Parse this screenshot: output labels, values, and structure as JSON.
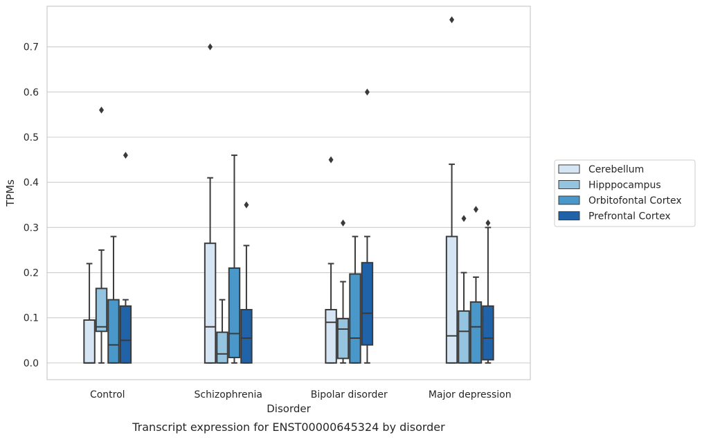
{
  "caption": "Transcript expression for ENST00000645324 by disorder",
  "chart_data": {
    "type": "box",
    "xlabel": "Disorder",
    "ylabel": "TPMs",
    "ylim": [
      -0.037,
      0.79
    ],
    "yticks": [
      0.0,
      0.1,
      0.2,
      0.3,
      0.4,
      0.5,
      0.6,
      0.7
    ],
    "ytick_labels": [
      "0.0",
      "0.1",
      "0.2",
      "0.3",
      "0.4",
      "0.5",
      "0.6",
      "0.7"
    ],
    "grid": "horizontal",
    "legend_position": "right",
    "categories": [
      "Control",
      "Schizophrenia",
      "Bipolar disorder",
      "Major depression"
    ],
    "series": [
      {
        "name": "Cerebellum",
        "color": "#d6e5f4",
        "boxes": [
          {
            "whislo": 0.0,
            "q1": 0.0,
            "med": 0.0,
            "q3": 0.095,
            "whishi": 0.22,
            "fliers": []
          },
          {
            "whislo": 0.0,
            "q1": 0.0,
            "med": 0.08,
            "q3": 0.265,
            "whishi": 0.41,
            "fliers": [
              0.7
            ]
          },
          {
            "whislo": 0.0,
            "q1": 0.0,
            "med": 0.09,
            "q3": 0.118,
            "whishi": 0.22,
            "fliers": [
              0.45
            ]
          },
          {
            "whislo": 0.0,
            "q1": 0.0,
            "med": 0.06,
            "q3": 0.28,
            "whishi": 0.44,
            "fliers": [
              0.76
            ]
          }
        ]
      },
      {
        "name": "Hipppocampus",
        "color": "#94c4df",
        "boxes": [
          {
            "whislo": 0.0,
            "q1": 0.07,
            "med": 0.08,
            "q3": 0.165,
            "whishi": 0.25,
            "fliers": [
              0.56
            ]
          },
          {
            "whislo": 0.0,
            "q1": 0.0,
            "med": 0.02,
            "q3": 0.068,
            "whishi": 0.14,
            "fliers": []
          },
          {
            "whislo": 0.0,
            "q1": 0.01,
            "med": 0.075,
            "q3": 0.098,
            "whishi": 0.18,
            "fliers": [
              0.31
            ]
          },
          {
            "whislo": 0.0,
            "q1": 0.0,
            "med": 0.07,
            "q3": 0.115,
            "whishi": 0.2,
            "fliers": [
              0.32
            ]
          }
        ]
      },
      {
        "name": "Orbitofontal Cortex",
        "color": "#4a98c9",
        "boxes": [
          {
            "whislo": 0.0,
            "q1": 0.0,
            "med": 0.04,
            "q3": 0.14,
            "whishi": 0.28,
            "fliers": []
          },
          {
            "whislo": 0.0,
            "q1": 0.012,
            "med": 0.065,
            "q3": 0.21,
            "whishi": 0.46,
            "fliers": []
          },
          {
            "whislo": 0.0,
            "q1": 0.0,
            "med": 0.055,
            "q3": 0.197,
            "whishi": 0.28,
            "fliers": []
          },
          {
            "whislo": 0.0,
            "q1": 0.0,
            "med": 0.08,
            "q3": 0.135,
            "whishi": 0.19,
            "fliers": [
              0.34
            ]
          }
        ]
      },
      {
        "name": "Prefrontal Cortex",
        "color": "#2163a8",
        "boxes": [
          {
            "whislo": 0.0,
            "q1": 0.0,
            "med": 0.05,
            "q3": 0.126,
            "whishi": 0.14,
            "fliers": [
              0.46
            ]
          },
          {
            "whislo": 0.0,
            "q1": 0.0,
            "med": 0.055,
            "q3": 0.118,
            "whishi": 0.26,
            "fliers": [
              0.35
            ]
          },
          {
            "whislo": 0.0,
            "q1": 0.04,
            "med": 0.11,
            "q3": 0.222,
            "whishi": 0.28,
            "fliers": [
              0.6
            ]
          },
          {
            "whislo": 0.0,
            "q1": 0.007,
            "med": 0.055,
            "q3": 0.126,
            "whishi": 0.3,
            "fliers": [
              0.31
            ]
          }
        ]
      }
    ]
  }
}
